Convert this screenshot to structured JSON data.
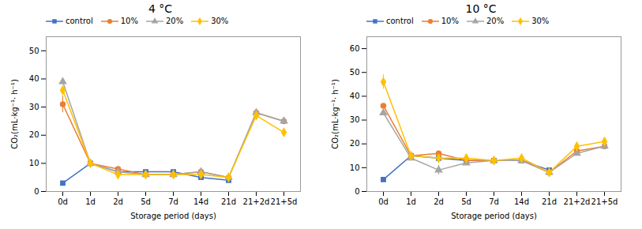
{
  "chart_data": [
    {
      "type": "line",
      "title": "4 °C",
      "xlabel": "Storage period (days)",
      "ylabel": "CO₂(mL·kg⁻¹· h⁻¹)",
      "categories": [
        "0d",
        "1d",
        "2d",
        "5d",
        "7d",
        "14d",
        "21d",
        "21+2d",
        "21+5d"
      ],
      "series": [
        {
          "name": "control",
          "color": "#4472C4",
          "marker": "square",
          "values": [
            3,
            10,
            7,
            7,
            7,
            5,
            4,
            null,
            null
          ],
          "yerr": [
            null,
            null,
            null,
            null,
            null,
            null,
            null,
            null,
            null
          ]
        },
        {
          "name": "10%",
          "color": "#ED7D31",
          "marker": "circle",
          "values": [
            31,
            10,
            8,
            6,
            6,
            7,
            5,
            28,
            25
          ],
          "yerr": [
            3,
            null,
            null,
            null,
            null,
            null,
            null,
            1,
            1
          ]
        },
        {
          "name": "20%",
          "color": "#A5A5A5",
          "marker": "triangle",
          "values": [
            39,
            10,
            7,
            6,
            6,
            7,
            5,
            28,
            25
          ],
          "yerr": [
            1,
            null,
            null,
            null,
            null,
            null,
            null,
            1,
            1
          ]
        },
        {
          "name": "30%",
          "color": "#FFC000",
          "marker": "diamond",
          "values": [
            36,
            10,
            6,
            6,
            6,
            6,
            5,
            27,
            21
          ],
          "yerr": [
            null,
            null,
            null,
            null,
            null,
            null,
            null,
            1,
            1
          ]
        }
      ],
      "ylim": [
        0,
        55
      ],
      "yticks": [
        0,
        10,
        20,
        30,
        40,
        50
      ],
      "grid": false,
      "legend": "upper left"
    },
    {
      "type": "line",
      "title": "10 °C",
      "xlabel": "Storage period (days)",
      "ylabel": "CO₂(mL·kg⁻¹· h⁻¹)",
      "categories": [
        "0d",
        "1d",
        "2d",
        "5d",
        "7d",
        "14d",
        "21d",
        "21+2d",
        "21+5d"
      ],
      "series": [
        {
          "name": "control",
          "color": "#4472C4",
          "marker": "square",
          "values": [
            5,
            15,
            14,
            13,
            13,
            13,
            9,
            null,
            null
          ],
          "yerr": [
            null,
            null,
            null,
            null,
            null,
            null,
            null,
            null,
            null
          ]
        },
        {
          "name": "10%",
          "color": "#ED7D31",
          "marker": "circle",
          "values": [
            36,
            15,
            16,
            13,
            13,
            13,
            8,
            17,
            19
          ],
          "yerr": [
            null,
            null,
            null,
            null,
            null,
            null,
            null,
            1,
            1
          ]
        },
        {
          "name": "20%",
          "color": "#A5A5A5",
          "marker": "triangle",
          "values": [
            33,
            14,
            9,
            12,
            13,
            13,
            8,
            16,
            19
          ],
          "yerr": [
            1,
            null,
            2,
            null,
            null,
            null,
            null,
            1,
            1
          ]
        },
        {
          "name": "30%",
          "color": "#FFC000",
          "marker": "diamond",
          "values": [
            46,
            15,
            14,
            14,
            13,
            14,
            8,
            19,
            21
          ],
          "yerr": [
            3,
            null,
            null,
            null,
            null,
            null,
            null,
            1,
            1
          ]
        }
      ],
      "ylim": [
        0,
        65
      ],
      "yticks": [
        0,
        10,
        20,
        30,
        40,
        50,
        60
      ],
      "grid": false,
      "legend": "upper left"
    }
  ]
}
